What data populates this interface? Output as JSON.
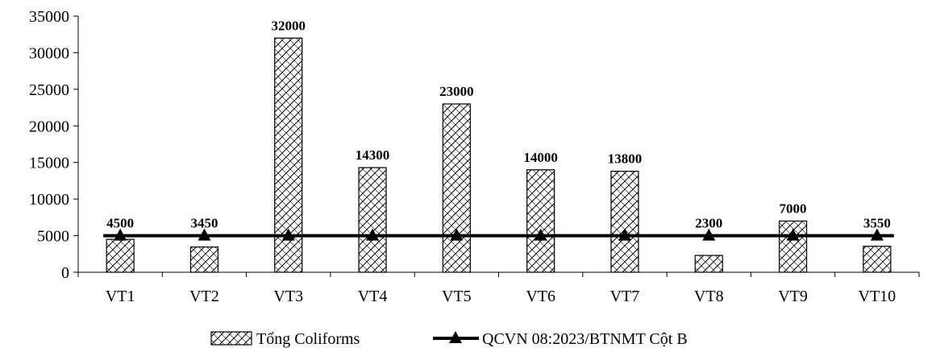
{
  "chart_data": {
    "type": "bar",
    "categories": [
      "VT1",
      "VT2",
      "VT3",
      "VT4",
      "VT5",
      "VT6",
      "VT7",
      "VT8",
      "VT9",
      "VT10"
    ],
    "series": [
      {
        "name": "Tổng Coliforms",
        "type": "bar",
        "values": [
          4500,
          3450,
          32000,
          14300,
          23000,
          14000,
          13800,
          2300,
          7000,
          3550
        ],
        "data_labels": [
          "4500",
          "3450",
          "32000",
          "14300",
          "23000",
          "14000",
          "13800",
          "2300",
          "7000",
          "3550"
        ]
      },
      {
        "name": "QCVN 08:2023/BTNMT Cột B",
        "type": "line",
        "marker": "triangle",
        "values": [
          5000,
          5000,
          5000,
          5000,
          5000,
          5000,
          5000,
          5000,
          5000,
          5000
        ]
      }
    ],
    "y_ticks": [
      "0",
      "5000",
      "10000",
      "15000",
      "20000",
      "25000",
      "30000",
      "35000"
    ],
    "ylim": [
      0,
      35000
    ],
    "grid": false,
    "legend_position": "bottom",
    "title": "",
    "xlabel": "",
    "ylabel": ""
  }
}
